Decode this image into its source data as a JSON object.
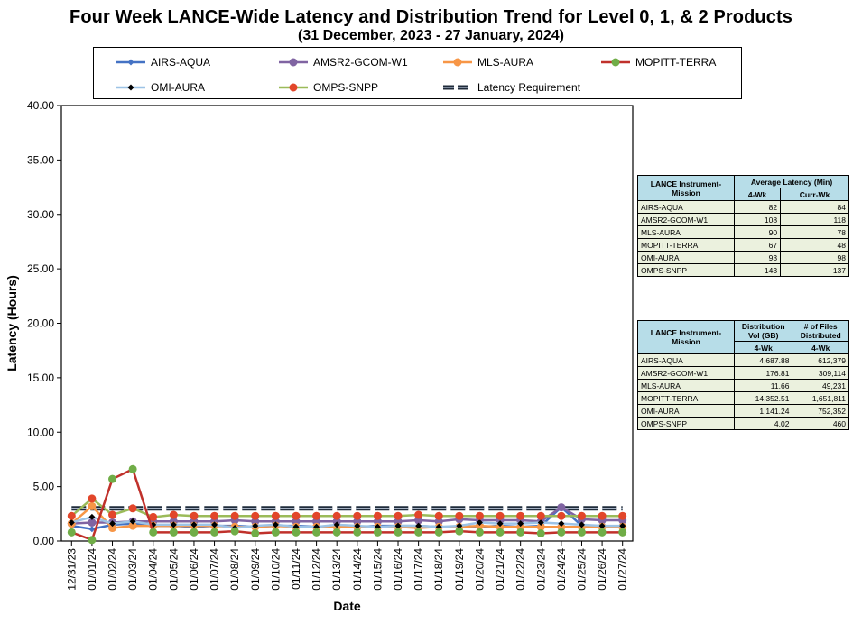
{
  "title": "Four Week LANCE-Wide Latency and Distribution Trend for Level 0, 1, & 2 Products",
  "subtitle": "(31  December,  2023  -  27  January, 2024)",
  "chart_data": {
    "type": "line",
    "title": "Four Week LANCE-Wide Latency and Distribution Trend for Level 0, 1, & 2 Products",
    "subtitle": "(31  December,  2023  -  27  January, 2024)",
    "xlabel": "Date",
    "ylabel": "Latency (Hours)",
    "ylim": [
      0,
      40
    ],
    "yticks": [
      "0.00",
      "5.00",
      "10.00",
      "15.00",
      "20.00",
      "25.00",
      "30.00",
      "35.00",
      "40.00"
    ],
    "grid": false,
    "legend_position": "top",
    "categories": [
      "12/31/23",
      "01/01/24",
      "01/02/24",
      "01/03/24",
      "01/04/24",
      "01/05/24",
      "01/06/24",
      "01/07/24",
      "01/08/24",
      "01/09/24",
      "01/10/24",
      "01/11/24",
      "01/12/24",
      "01/13/24",
      "01/14/24",
      "01/15/24",
      "01/16/24",
      "01/17/24",
      "01/18/24",
      "01/19/24",
      "01/20/24",
      "01/21/24",
      "01/22/24",
      "01/23/24",
      "01/24/24",
      "01/25/24",
      "01/26/24",
      "01/27/24"
    ],
    "series": [
      {
        "name": "AIRS-AQUA",
        "color": "#4472c4",
        "marker": "diamond",
        "values": [
          1.4,
          1.1,
          1.5,
          1.6,
          1.4,
          1.4,
          1.3,
          1.4,
          1.4,
          1.3,
          1.4,
          1.4,
          1.3,
          1.4,
          1.3,
          1.4,
          1.4,
          1.4,
          1.3,
          1.3,
          1.3,
          1.4,
          1.3,
          1.4,
          3.1,
          1.4,
          1.3,
          1.4
        ]
      },
      {
        "name": "AMSR2-GCOM-W1",
        "color": "#8064a2",
        "marker": "circle",
        "values": [
          1.6,
          1.7,
          1.7,
          1.8,
          1.8,
          1.8,
          1.8,
          1.8,
          1.9,
          1.8,
          1.8,
          1.8,
          1.8,
          1.8,
          1.8,
          1.8,
          1.8,
          1.9,
          1.8,
          2.0,
          1.9,
          1.9,
          1.9,
          1.8,
          3.1,
          2.0,
          1.9,
          1.9
        ]
      },
      {
        "name": "MLS-AURA",
        "color": "#f79646",
        "marker": "circle",
        "values": [
          1.6,
          3.2,
          1.2,
          1.4,
          1.4,
          1.4,
          1.4,
          1.4,
          1.3,
          1.3,
          1.4,
          1.3,
          1.3,
          1.3,
          1.3,
          1.3,
          1.3,
          1.2,
          1.3,
          1.3,
          1.4,
          1.3,
          1.3,
          1.3,
          1.3,
          1.3,
          1.3,
          1.3
        ]
      },
      {
        "name": "MOPITT-TERRA",
        "color": "#c0312b",
        "marker": "circle",
        "marker_color": "#70ad47",
        "values": [
          0.8,
          0.1,
          5.7,
          6.6,
          0.8,
          0.8,
          0.8,
          0.8,
          0.9,
          0.7,
          0.8,
          0.8,
          0.8,
          0.8,
          0.8,
          0.8,
          0.8,
          0.8,
          0.8,
          0.9,
          0.8,
          0.8,
          0.8,
          0.7,
          0.8,
          0.8,
          0.8,
          0.8
        ]
      },
      {
        "name": "OMI-AURA",
        "color": "#9dc3e6",
        "marker": "diamond",
        "marker_color": "#000000",
        "values": [
          1.7,
          2.2,
          1.6,
          1.8,
          1.5,
          1.5,
          1.5,
          1.5,
          1.2,
          1.4,
          1.5,
          1.3,
          1.3,
          1.5,
          1.4,
          1.3,
          1.4,
          1.4,
          1.3,
          1.4,
          1.7,
          1.6,
          1.6,
          1.7,
          1.6,
          1.5,
          1.4,
          1.4
        ]
      },
      {
        "name": "OMPS-SNPP",
        "color": "#9bbb59",
        "marker": "circle",
        "marker_color": "#e2462a",
        "values": [
          2.3,
          3.9,
          2.4,
          3.0,
          2.2,
          2.4,
          2.3,
          2.3,
          2.3,
          2.3,
          2.3,
          2.3,
          2.3,
          2.3,
          2.3,
          2.3,
          2.3,
          2.4,
          2.3,
          2.3,
          2.3,
          2.3,
          2.3,
          2.3,
          2.3,
          2.3,
          2.3,
          2.3
        ]
      },
      {
        "name": "Latency Requirement",
        "color": "#1f2b3a",
        "dashed": true,
        "values": [
          3,
          3,
          3,
          3,
          3,
          3,
          3,
          3,
          3,
          3,
          3,
          3,
          3,
          3,
          3,
          3,
          3,
          3,
          3,
          3,
          3,
          3,
          3,
          3,
          3,
          3,
          3,
          3
        ]
      }
    ]
  },
  "latency_table": {
    "header1": [
      "LANCE Instrument-Mission",
      "Average Latency (Min)"
    ],
    "header2": [
      "4-Wk",
      "Curr-Wk"
    ],
    "rows": [
      {
        "name": "AIRS-AQUA",
        "wk4": "82",
        "curr": "84"
      },
      {
        "name": "AMSR2-GCOM-W1",
        "wk4": "108",
        "curr": "118"
      },
      {
        "name": "MLS-AURA",
        "wk4": "90",
        "curr": "78"
      },
      {
        "name": "MOPITT-TERRA",
        "wk4": "67",
        "curr": "48"
      },
      {
        "name": "OMI-AURA",
        "wk4": "93",
        "curr": "98"
      },
      {
        "name": "OMPS-SNPP",
        "wk4": "143",
        "curr": "137"
      }
    ]
  },
  "distribution_table": {
    "header1": [
      "LANCE Instrument-Mission",
      "Distribution Vol (GB)",
      "# of Files Distributed"
    ],
    "header2": [
      "4-Wk",
      "4-Wk"
    ],
    "rows": [
      {
        "name": "AIRS-AQUA",
        "vol": "4,687.88",
        "files": "612,379"
      },
      {
        "name": "AMSR2-GCOM-W1",
        "vol": "176.81",
        "files": "309,114"
      },
      {
        "name": "MLS-AURA",
        "vol": "11.66",
        "files": "49,231"
      },
      {
        "name": "MOPITT-TERRA",
        "vol": "14,352.51",
        "files": "1,651,811"
      },
      {
        "name": "OMI-AURA",
        "vol": "1,141.24",
        "files": "752,352"
      },
      {
        "name": "OMPS-SNPP",
        "vol": "4.02",
        "files": "460"
      }
    ]
  }
}
